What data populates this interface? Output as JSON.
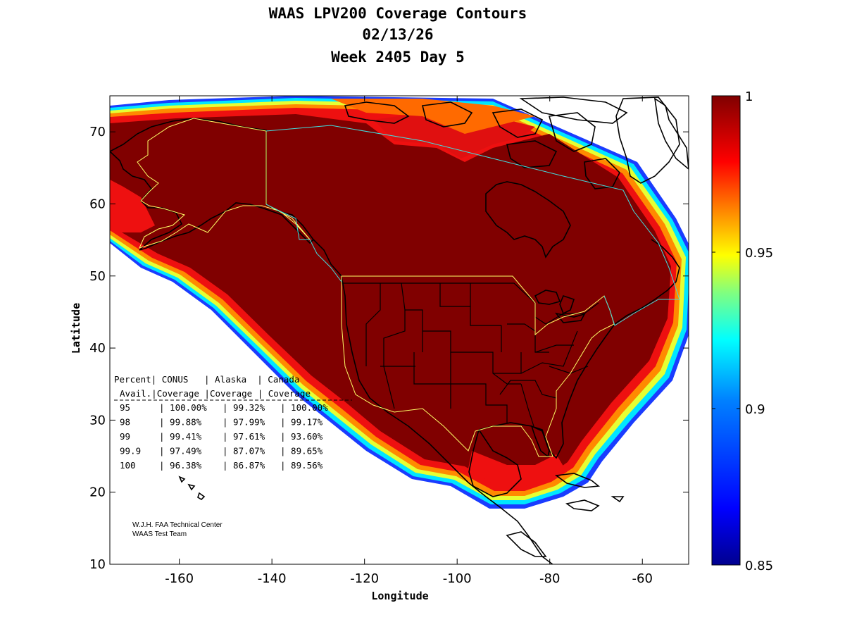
{
  "title": {
    "line1": "WAAS LPV200 Coverage Contours",
    "line2": "02/13/26",
    "line3": "Week 2405 Day 5"
  },
  "chart_data": {
    "type": "heatmap",
    "xlabel": "Longitude",
    "ylabel": "Latitude",
    "xlim": [
      -175,
      -50
    ],
    "ylim": [
      10,
      75
    ],
    "x_ticks": [
      -160,
      -140,
      -120,
      -100,
      -80,
      -60
    ],
    "y_ticks": [
      10,
      20,
      30,
      40,
      50,
      60,
      70
    ],
    "colorbar": {
      "range": [
        0.85,
        1
      ],
      "ticks": [
        "1",
        "0.95",
        "0.9",
        "0.85"
      ],
      "tick_values": [
        1,
        0.95,
        0.9,
        0.85
      ],
      "colors": [
        "#00008f",
        "#0000ff",
        "#0080ff",
        "#00ffff",
        "#80ff80",
        "#ffff00",
        "#ff8000",
        "#ff0000",
        "#800000"
      ]
    },
    "grid": false
  },
  "table": {
    "header1": [
      "Percent",
      "CONUS",
      "Alaska",
      "Canada"
    ],
    "header2": [
      "Avail.",
      "Coverage",
      "Coverage",
      "Coverage"
    ],
    "rows": [
      [
        "95",
        "100.00%",
        "99.32%",
        "100.00%"
      ],
      [
        "98",
        "99.88%",
        "97.99%",
        "99.17%"
      ],
      [
        "99",
        "99.41%",
        "97.61%",
        "93.60%"
      ],
      [
        "99.9",
        "97.49%",
        "87.07%",
        "89.65%"
      ],
      [
        "100",
        "96.38%",
        "86.87%",
        "89.56%"
      ]
    ]
  },
  "credit": {
    "line1": "W.J.H. FAA Technical Center",
    "line2": "WAAS Test Team"
  },
  "colors": {
    "dark_red": "#800000",
    "red": "#e60000",
    "orange": "#ff8000",
    "yellow": "#ffff00",
    "cyan": "#00ffff",
    "blue": "#0000ff",
    "service_area_outline": "#ffff66",
    "border_outline": "#40e0e0"
  }
}
